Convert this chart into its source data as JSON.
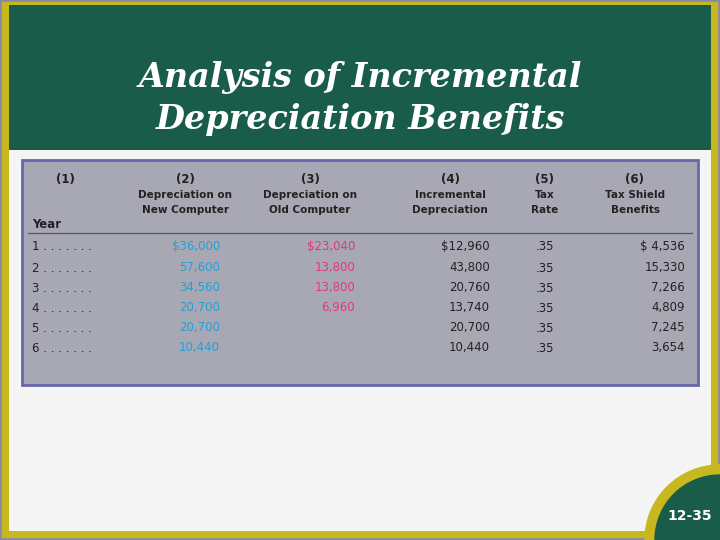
{
  "title_line1": "Analysis of Incremental",
  "title_line2": "Depreciation Benefits",
  "title_bg_color": "#1a5c4a",
  "title_text_color": "#ffffff",
  "slide_bg_color": "#8888aa",
  "outer_border_color": "#c8b820",
  "table_border_color": "#6666aa",
  "table_bg_color": "#a8a8b4",
  "white_area_color": "#f5f5f5",
  "badge_text": "12-35",
  "badge_bg": "#1a5c4a",
  "badge_arc_color": "#c8b820",
  "col_headers": [
    "(1)",
    "(2)",
    "(3)",
    "(4)",
    "(5)",
    "(6)"
  ],
  "col_subheaders": [
    [
      "Year"
    ],
    [
      "Depreciation on",
      "New Computer"
    ],
    [
      "Depreciation on",
      "Old Computer"
    ],
    [
      "Incremental",
      "Depreciation"
    ],
    [
      "Tax",
      "Rate"
    ],
    [
      "Tax Shield",
      "Benefits"
    ]
  ],
  "rows": [
    [
      "1 . . . . . . .",
      "$36,000",
      "$23,040",
      "$12,960",
      ".35",
      "$ 4,536"
    ],
    [
      "2 . . . . . . .",
      "57,600",
      "13,800",
      "43,800",
      ".35",
      "15,330"
    ],
    [
      "3 . . . . . . .",
      "34,560",
      "13,800",
      "20,760",
      ".35",
      "7,266"
    ],
    [
      "4 . . . . . . .",
      "20,700",
      "6,960",
      "13,740",
      ".35",
      "4,809"
    ],
    [
      "5 . . . . . . .",
      "20,700",
      "",
      "20,700",
      ".35",
      "7,245"
    ],
    [
      "6 . . . . . . .",
      "10,440",
      "",
      "10,440",
      ".35",
      "3,654"
    ]
  ],
  "col2_color": "#20a0d8",
  "col3_color": "#e03878",
  "col4_color": "#222222",
  "col5_color": "#222222",
  "col6_color": "#222222",
  "header_color": "#222222"
}
